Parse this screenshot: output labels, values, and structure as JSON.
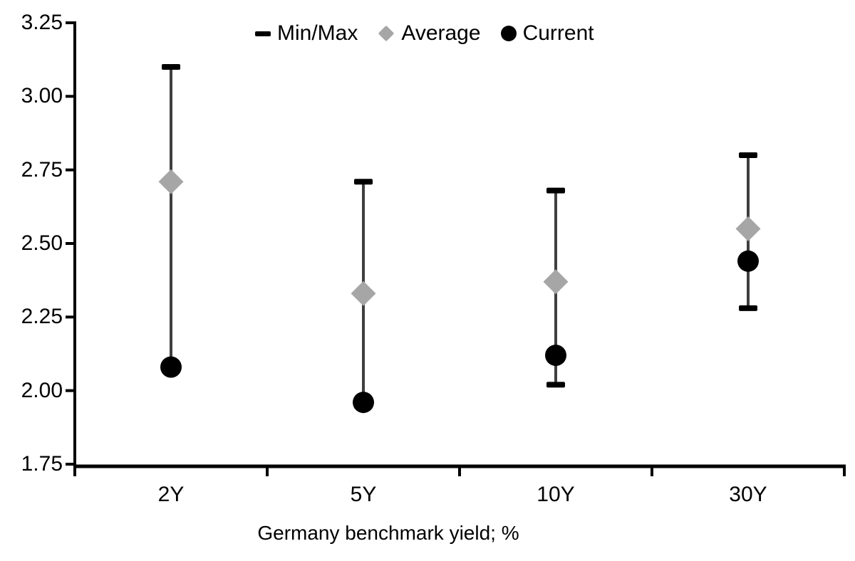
{
  "chart_data": {
    "type": "scatter",
    "subtype": "min-max-range-with-markers",
    "categories": [
      "2Y",
      "5Y",
      "10Y",
      "30Y"
    ],
    "series": [
      {
        "name": "Min/Max",
        "marker": "dash",
        "color": "#000000",
        "min": [
          2.08,
          1.96,
          2.02,
          2.28
        ],
        "max": [
          3.1,
          2.71,
          2.68,
          2.8
        ]
      },
      {
        "name": "Average",
        "marker": "diamond",
        "color": "#a6a6a6",
        "values": [
          2.71,
          2.33,
          2.37,
          2.55
        ]
      },
      {
        "name": "Current",
        "marker": "circle",
        "color": "#000000",
        "values": [
          2.08,
          1.96,
          2.12,
          2.44
        ]
      }
    ],
    "xlabel": "Germany benchmark yield; %",
    "ylabel": "",
    "title": "",
    "ylim": [
      1.75,
      3.25
    ],
    "yticks": [
      3.25,
      3.0,
      2.75,
      2.5,
      2.25,
      2.0,
      1.75
    ],
    "ytick_labels": [
      "3.25",
      "3.00",
      "2.75",
      "2.50",
      "2.25",
      "2.00",
      "1.75"
    ],
    "legend_position": "top",
    "grid": false,
    "whisker_color": "#3f3f3f",
    "axis_color": "#000000",
    "background_color": "#ffffff"
  }
}
